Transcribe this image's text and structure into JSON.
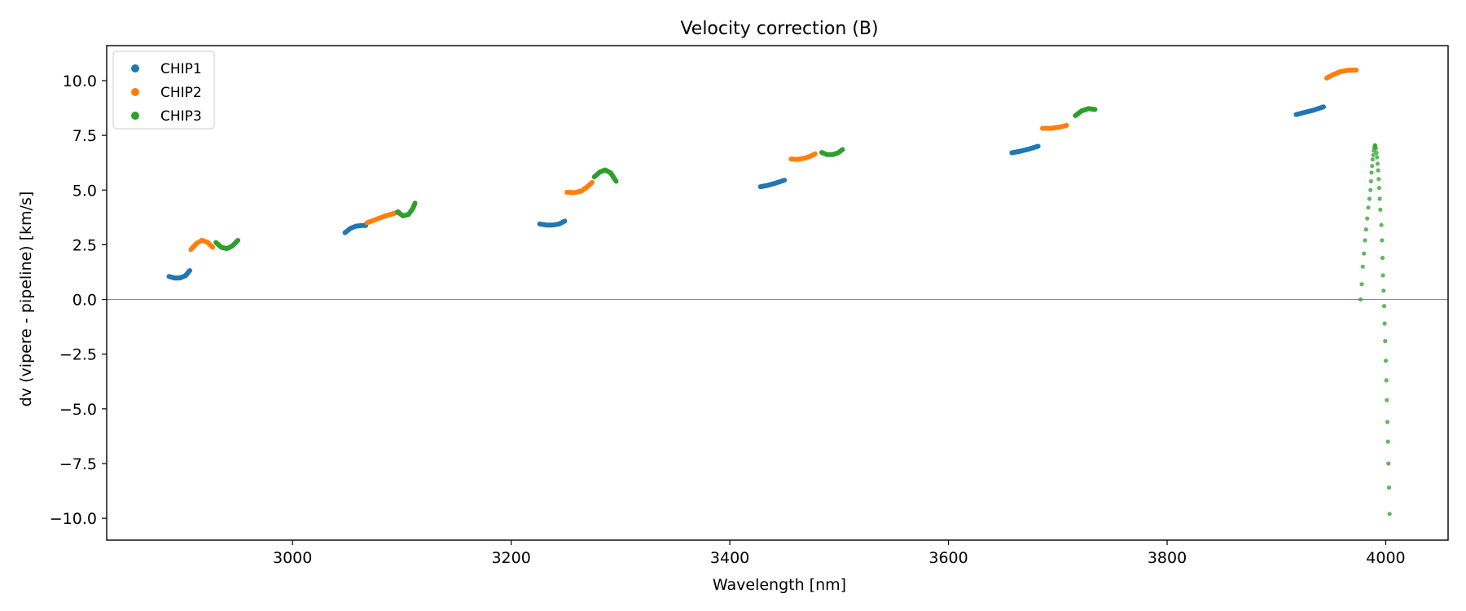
{
  "chart_data": {
    "type": "scatter",
    "title": "Velocity correction (B)",
    "xlabel": "Wavelength [nm]",
    "ylabel": "dv (vipere - pipeline) [km/s]",
    "xlim": [
      2830,
      4057
    ],
    "ylim": [
      -11.0,
      11.6
    ],
    "xticks": [
      3000,
      3200,
      3400,
      3600,
      3800,
      4000
    ],
    "xtick_labels": [
      "3000",
      "3200",
      "3400",
      "3600",
      "3800",
      "4000"
    ],
    "yticks": [
      10.0,
      7.5,
      5.0,
      2.5,
      0.0,
      -2.5,
      -5.0,
      -7.5,
      -10.0
    ],
    "ytick_labels": [
      "10.0",
      "7.5",
      "5.0",
      "2.5",
      "0.0",
      "−2.5",
      "−5.0",
      "−7.5",
      "−10.0"
    ],
    "hline": 0.0,
    "legend_position": "upper-left",
    "series": [
      {
        "name": "CHIP1",
        "color": "#1f77b4",
        "segments": [
          [
            [
              2887,
              1.05
            ],
            [
              2892,
              0.98
            ],
            [
              2897,
              0.98
            ],
            [
              2902,
              1.08
            ],
            [
              2906,
              1.32
            ]
          ],
          [
            [
              3048,
              3.05
            ],
            [
              3053,
              3.25
            ],
            [
              3058,
              3.35
            ],
            [
              3063,
              3.38
            ],
            [
              3067,
              3.38
            ]
          ],
          [
            [
              3226,
              3.45
            ],
            [
              3232,
              3.4
            ],
            [
              3238,
              3.4
            ],
            [
              3244,
              3.45
            ],
            [
              3249,
              3.58
            ]
          ],
          [
            [
              3428,
              5.15
            ],
            [
              3435,
              5.22
            ],
            [
              3442,
              5.32
            ],
            [
              3450,
              5.45
            ]
          ],
          [
            [
              3658,
              6.7
            ],
            [
              3666,
              6.78
            ],
            [
              3674,
              6.88
            ],
            [
              3682,
              7.0
            ]
          ],
          [
            [
              3918,
              8.45
            ],
            [
              3926,
              8.55
            ],
            [
              3934,
              8.65
            ],
            [
              3943,
              8.8
            ]
          ]
        ]
      },
      {
        "name": "CHIP2",
        "color": "#ff7f0e",
        "segments": [
          [
            [
              2907,
              2.28
            ],
            [
              2912,
              2.55
            ],
            [
              2917,
              2.7
            ],
            [
              2922,
              2.62
            ],
            [
              2927,
              2.38
            ]
          ],
          [
            [
              3068,
              3.5
            ],
            [
              3076,
              3.65
            ],
            [
              3084,
              3.8
            ],
            [
              3092,
              3.92
            ],
            [
              3097,
              4.0
            ]
          ],
          [
            [
              3251,
              4.9
            ],
            [
              3258,
              4.88
            ],
            [
              3264,
              4.95
            ],
            [
              3269,
              5.12
            ],
            [
              3274,
              5.35
            ]
          ],
          [
            [
              3456,
              6.42
            ],
            [
              3462,
              6.4
            ],
            [
              3468,
              6.45
            ],
            [
              3474,
              6.55
            ],
            [
              3478,
              6.65
            ]
          ],
          [
            [
              3686,
              7.82
            ],
            [
              3694,
              7.82
            ],
            [
              3702,
              7.88
            ],
            [
              3708,
              7.95
            ]
          ],
          [
            [
              3946,
              10.12
            ],
            [
              3952,
              10.28
            ],
            [
              3958,
              10.4
            ],
            [
              3966,
              10.48
            ],
            [
              3973,
              10.48
            ]
          ]
        ]
      },
      {
        "name": "CHIP3",
        "color": "#2ca02c",
        "segments": [
          [
            [
              2930,
              2.6
            ],
            [
              2935,
              2.38
            ],
            [
              2940,
              2.32
            ],
            [
              2945,
              2.45
            ],
            [
              2950,
              2.7
            ]
          ],
          [
            [
              3096,
              4.0
            ],
            [
              3101,
              3.82
            ],
            [
              3106,
              3.88
            ],
            [
              3110,
              4.15
            ],
            [
              3112,
              4.4
            ]
          ],
          [
            [
              3276,
              5.6
            ],
            [
              3281,
              5.82
            ],
            [
              3286,
              5.92
            ],
            [
              3291,
              5.78
            ],
            [
              3296,
              5.4
            ]
          ],
          [
            [
              3484,
              6.72
            ],
            [
              3489,
              6.62
            ],
            [
              3494,
              6.62
            ],
            [
              3499,
              6.7
            ],
            [
              3503,
              6.85
            ]
          ],
          [
            [
              3716,
              8.4
            ],
            [
              3722,
              8.62
            ],
            [
              3728,
              8.72
            ],
            [
              3734,
              8.68
            ]
          ]
        ],
        "scatter": [
          [
            3977,
            0.0
          ],
          [
            3978,
            0.7
          ],
          [
            3979,
            1.5
          ],
          [
            3980,
            2.1
          ],
          [
            3981,
            2.7
          ],
          [
            3982,
            3.2
          ],
          [
            3983,
            3.7
          ],
          [
            3984,
            4.2
          ],
          [
            3985,
            4.6
          ],
          [
            3986,
            5.0
          ],
          [
            3986.5,
            5.4
          ],
          [
            3987,
            5.8
          ],
          [
            3987.5,
            6.1
          ],
          [
            3988,
            6.4
          ],
          [
            3988.5,
            6.6
          ],
          [
            3989,
            6.8
          ],
          [
            3989.5,
            6.95
          ],
          [
            3990,
            7.05
          ],
          [
            3990.5,
            7.02
          ],
          [
            3991,
            6.9
          ],
          [
            3991.5,
            6.7
          ],
          [
            3992,
            6.5
          ],
          [
            3992.5,
            6.2
          ],
          [
            3993,
            5.9
          ],
          [
            3993.5,
            5.5
          ],
          [
            3994,
            5.1
          ],
          [
            3994.5,
            4.6
          ],
          [
            3995,
            4.1
          ],
          [
            3996,
            3.4
          ],
          [
            3996.5,
            2.7
          ],
          [
            3997,
            1.9
          ],
          [
            3997.5,
            1.1
          ],
          [
            3998,
            0.4
          ],
          [
            3998.5,
            -0.3
          ],
          [
            3999,
            -1.1
          ],
          [
            3999.5,
            -1.9
          ],
          [
            4000,
            -2.8
          ],
          [
            4000.5,
            -3.7
          ],
          [
            4001,
            -4.6
          ],
          [
            4001.5,
            -5.6
          ],
          [
            4002,
            -6.5
          ],
          [
            4002.5,
            -7.5
          ],
          [
            4003,
            -8.6
          ],
          [
            4003.5,
            -9.8
          ]
        ]
      }
    ]
  }
}
